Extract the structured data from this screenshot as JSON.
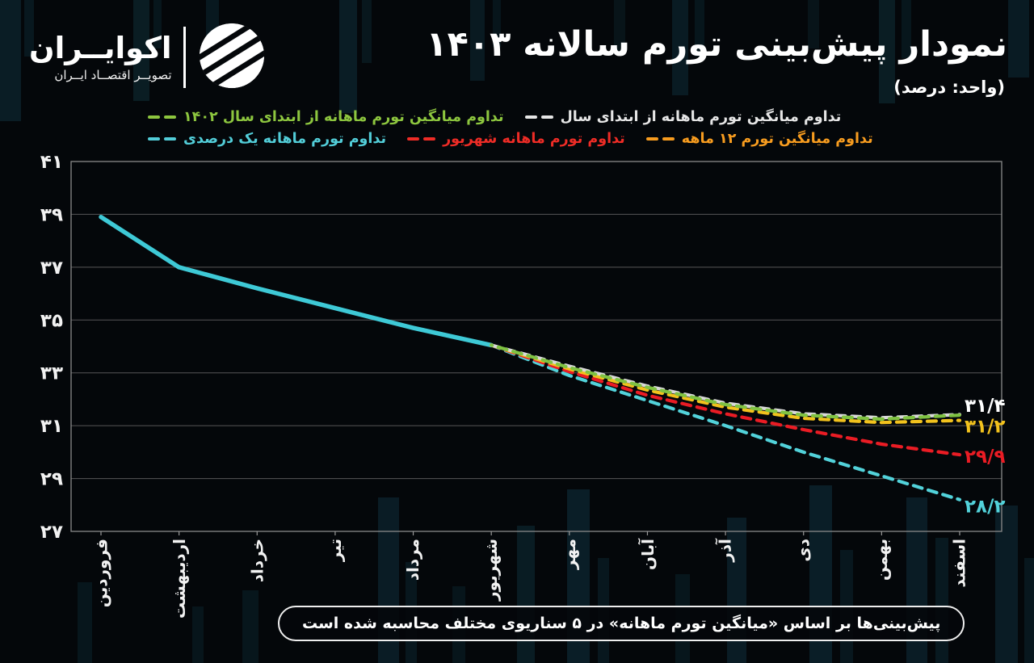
{
  "header": {
    "logo_name": "اکوایــران",
    "logo_tagline": "تصویــر اقتصــاد ایــران",
    "title": "نمودار پیش‌بینی تورم سالانه ۱۴۰۳",
    "unit_note": "(واحد: درصد)"
  },
  "colors": {
    "background": "#04070a",
    "observed_line": "#3ec9d6",
    "scenario_1402": "#7fc242",
    "scenario_current_year": "#d9d9d9",
    "scenario_12month": "#f2c21d",
    "scenario_shahrivar": "#ea1c24",
    "scenario_1percent": "#52d2da",
    "grid": "#575757",
    "plot_border": "#8a8a8a"
  },
  "legend": {
    "row1": [
      {
        "label": "تداوم میانگین تورم ماهانه از ابتدای سال ۱۴۰۲",
        "color": "#8dc63f",
        "series": "scenario_1402"
      },
      {
        "label": "تداوم میانگین تورم ماهانه از ابتدای سال",
        "color": "#e6e6e6",
        "series": "scenario_current_year"
      }
    ],
    "row2": [
      {
        "label": "تداوم تورم ماهانه یک درصدی",
        "color": "#52cdd8",
        "series": "scenario_1percent"
      },
      {
        "label": "تداوم تورم ماهانه شهریور",
        "color": "#ee2c26",
        "series": "scenario_shahrivar"
      },
      {
        "label": "تداوم میانگین تورم ۱۲ ماهه",
        "color": "#f79c1f",
        "series": "scenario_12month"
      }
    ]
  },
  "chart_data": {
    "type": "line",
    "title": "نمودار پیش‌بینی تورم سالانه ۱۴۰۳",
    "ylabel": "درصد",
    "ylim": [
      27,
      41
    ],
    "grid": "horizontal",
    "categories": [
      "فروردین",
      "اردیبهشت",
      "خرداد",
      "تیر",
      "مرداد",
      "شهریور",
      "مهر",
      "آبان",
      "آذر",
      "دی",
      "بهمن",
      "اسفند"
    ],
    "y_ticks": {
      "values": [
        41,
        39,
        37,
        35,
        33,
        31,
        29,
        27
      ],
      "labels": [
        "۴۱",
        "۳۹",
        "۳۷",
        "۳۵",
        "۳۳",
        "۳۱",
        "۲۹",
        "۲۷"
      ]
    },
    "series": [
      {
        "name": "observed",
        "style": "solid",
        "color": "#3ec9d6",
        "width": 5.5,
        "values": [
          38.9,
          37.0,
          36.2,
          35.45,
          34.7,
          34.05,
          null,
          null,
          null,
          null,
          null,
          null
        ]
      },
      {
        "name": "تداوم تورم ماهانه یک درصدی",
        "style": "dashed",
        "color": "#52d2da",
        "width": 4.2,
        "values": [
          null,
          null,
          null,
          null,
          null,
          34.05,
          32.9,
          31.95,
          31.0,
          30.0,
          29.1,
          28.2
        ]
      },
      {
        "name": "تداوم تورم ماهانه شهریور",
        "style": "dashed",
        "color": "#ea1c24",
        "width": 4.2,
        "values": [
          null,
          null,
          null,
          null,
          null,
          34.05,
          33.05,
          32.15,
          31.45,
          30.85,
          30.3,
          29.9
        ]
      },
      {
        "name": "تداوم میانگین تورم ۱۲ ماهه",
        "style": "dashed",
        "color": "#f2c21d",
        "width": 4.2,
        "values": [
          null,
          null,
          null,
          null,
          null,
          34.05,
          33.15,
          32.35,
          31.7,
          31.28,
          31.12,
          31.2
        ]
      },
      {
        "name": "تداوم میانگین تورم ماهانه از ابتدای سال",
        "style": "dashed",
        "color": "#d9d9d9",
        "width": 4.2,
        "values": [
          null,
          null,
          null,
          null,
          null,
          34.05,
          33.25,
          32.5,
          31.85,
          31.45,
          31.3,
          31.42
        ]
      },
      {
        "name": "تداوم میانگین تورم ماهانه از ابتدای سال ۱۴۰۲",
        "style": "dashed",
        "color": "#7fc242",
        "width": 4.2,
        "values": [
          null,
          null,
          null,
          null,
          null,
          34.05,
          33.2,
          32.45,
          31.8,
          31.4,
          31.25,
          31.4
        ]
      }
    ],
    "end_labels": [
      {
        "text": "۳۱/۴",
        "value": 31.4,
        "color": "#ffffff",
        "dy": -12
      },
      {
        "text": "۳۱/۲",
        "value": 31.2,
        "color": "#f2c21d",
        "dy": 7
      },
      {
        "text": "۲۹/۹",
        "value": 29.9,
        "color": "#ea1c24",
        "dy": 2
      },
      {
        "text": "۲۸/۲",
        "value": 28.2,
        "color": "#52d2da",
        "dy": 8
      }
    ]
  },
  "footer": {
    "note": "پیش‌بینی‌ها بر اساس «میانگین تورم ماهانه» در ۵ سناریوی مختلف محاسبه شده است"
  }
}
